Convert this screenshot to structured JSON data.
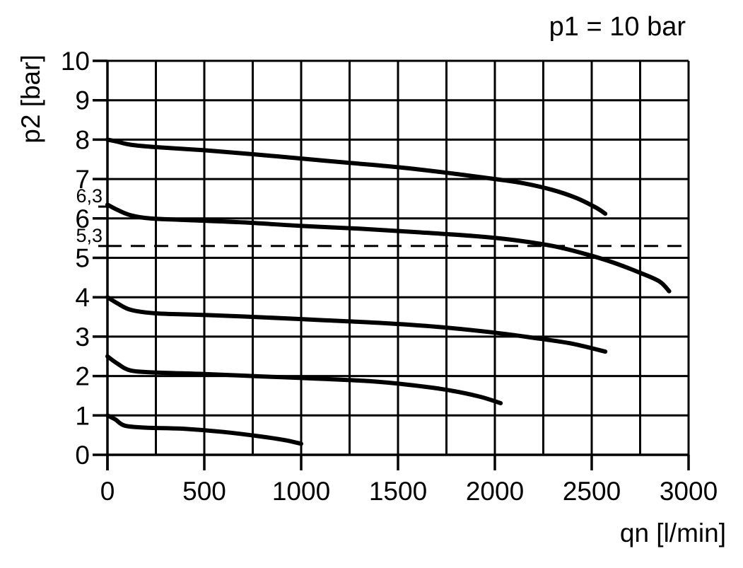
{
  "chart_data": {
    "type": "line",
    "title": "p1 = 10 bar",
    "xlabel": "qn [l/min]",
    "ylabel": "p2 [bar]",
    "xlim": [
      0,
      3000
    ],
    "ylim": [
      0,
      10
    ],
    "x_ticks": [
      0,
      500,
      1000,
      1500,
      2000,
      2500,
      3000
    ],
    "y_ticks": [
      0,
      1,
      2,
      3,
      4,
      5,
      6,
      7,
      8,
      9,
      10
    ],
    "x_grid_step": 250,
    "y_grid_step": 1,
    "grid": true,
    "line_color": "#000000",
    "y_minor_ticks": [
      {
        "value": 6.3,
        "label": "6,3"
      },
      {
        "value": 5.3,
        "label": "5,3"
      }
    ],
    "reference_line": {
      "y": 5.3,
      "style": "dashed"
    },
    "series": [
      {
        "id": "curve-8bar",
        "points": [
          [
            0,
            8.0
          ],
          [
            50,
            7.95
          ],
          [
            120,
            7.87
          ],
          [
            250,
            7.81
          ],
          [
            500,
            7.73
          ],
          [
            750,
            7.63
          ],
          [
            1000,
            7.52
          ],
          [
            1250,
            7.41
          ],
          [
            1500,
            7.3
          ],
          [
            1750,
            7.16
          ],
          [
            2000,
            7.0
          ],
          [
            2150,
            6.89
          ],
          [
            2300,
            6.72
          ],
          [
            2420,
            6.52
          ],
          [
            2520,
            6.28
          ],
          [
            2570,
            6.12
          ]
        ]
      },
      {
        "id": "curve-6_3bar",
        "points": [
          [
            0,
            6.35
          ],
          [
            50,
            6.22
          ],
          [
            120,
            6.08
          ],
          [
            220,
            6.0
          ],
          [
            400,
            5.96
          ],
          [
            700,
            5.9
          ],
          [
            1000,
            5.81
          ],
          [
            1300,
            5.74
          ],
          [
            1600,
            5.65
          ],
          [
            1900,
            5.55
          ],
          [
            2100,
            5.45
          ],
          [
            2300,
            5.3
          ],
          [
            2450,
            5.12
          ],
          [
            2600,
            4.9
          ],
          [
            2750,
            4.62
          ],
          [
            2850,
            4.4
          ],
          [
            2900,
            4.15
          ]
        ]
      },
      {
        "id": "curve-4bar",
        "points": [
          [
            0,
            4.0
          ],
          [
            50,
            3.85
          ],
          [
            120,
            3.68
          ],
          [
            250,
            3.59
          ],
          [
            500,
            3.55
          ],
          [
            800,
            3.49
          ],
          [
            1100,
            3.42
          ],
          [
            1400,
            3.35
          ],
          [
            1700,
            3.25
          ],
          [
            2000,
            3.1
          ],
          [
            2200,
            2.97
          ],
          [
            2400,
            2.82
          ],
          [
            2570,
            2.62
          ]
        ]
      },
      {
        "id": "curve-2_5bar",
        "points": [
          [
            0,
            2.5
          ],
          [
            50,
            2.32
          ],
          [
            120,
            2.14
          ],
          [
            250,
            2.09
          ],
          [
            500,
            2.05
          ],
          [
            800,
            1.99
          ],
          [
            1100,
            1.93
          ],
          [
            1350,
            1.87
          ],
          [
            1550,
            1.78
          ],
          [
            1750,
            1.65
          ],
          [
            1920,
            1.48
          ],
          [
            2030,
            1.31
          ]
        ]
      },
      {
        "id": "curve-1bar",
        "points": [
          [
            0,
            1.0
          ],
          [
            40,
            0.9
          ],
          [
            90,
            0.74
          ],
          [
            200,
            0.69
          ],
          [
            400,
            0.66
          ],
          [
            600,
            0.58
          ],
          [
            800,
            0.46
          ],
          [
            920,
            0.37
          ],
          [
            1000,
            0.28
          ]
        ]
      }
    ]
  }
}
